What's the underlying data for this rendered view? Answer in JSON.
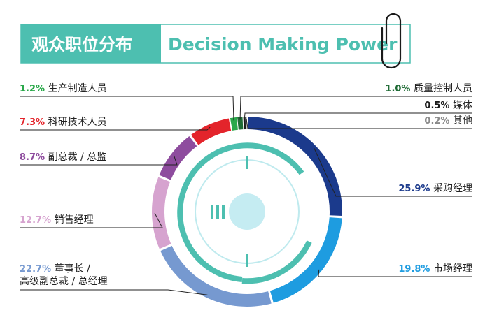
{
  "header": {
    "title_cn": "观众职位分布",
    "title_en": "Decision Making Power",
    "bg_color": "#4DBFB0",
    "text_color_cn": "#ffffff",
    "text_color_en": "#4DBFB0"
  },
  "chart_data": {
    "type": "pie",
    "title": "观众职位分布 Decision Making Power",
    "unit": "%",
    "slices": [
      {
        "label": "采购经理",
        "value": 25.9,
        "value_label": "25.9%",
        "color": "#1B3A8C"
      },
      {
        "label": "市场经理",
        "value": 19.8,
        "value_label": "19.8%",
        "color": "#1E9CE0"
      },
      {
        "label": "董事长 / 高级副总裁 / 总经理",
        "label_lines": [
          "董事长 /",
          "高级副总裁 / 总经理"
        ],
        "value": 22.7,
        "value_label": "22.7%",
        "color": "#7699D0"
      },
      {
        "label": "销售经理",
        "value": 12.7,
        "value_label": "12.7%",
        "color": "#D6A3CF"
      },
      {
        "label": "副总裁 / 总监",
        "value": 8.7,
        "value_label": "8.7%",
        "color": "#8E4C9E"
      },
      {
        "label": "科研技术人员",
        "value": 7.3,
        "value_label": "7.3%",
        "color": "#E3242B"
      },
      {
        "label": "生产制造人员",
        "value": 1.2,
        "value_label": "1.2%",
        "color": "#2AA84A"
      },
      {
        "label": "质量控制人员",
        "value": 1.0,
        "value_label": "1.0%",
        "color": "#1F6B35"
      },
      {
        "label": "媒体",
        "value": 0.5,
        "value_label": "0.5%",
        "color": "#1A1A1A"
      },
      {
        "label": "其他",
        "value": 0.2,
        "value_label": "0.2%",
        "color": "#8A8A8A"
      }
    ],
    "legend": "none",
    "grid": false,
    "decoration": {
      "ring_color": "#4DBFB0",
      "light_ring_color": "#BFEAEE",
      "center_color": "#C5ECF2"
    }
  }
}
